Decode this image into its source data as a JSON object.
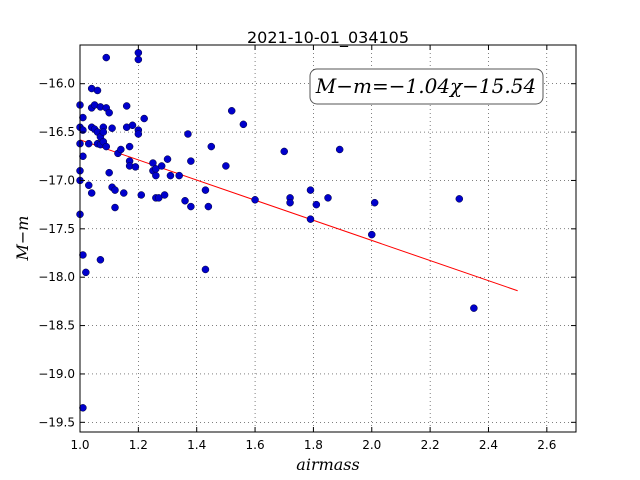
{
  "chart_data": {
    "type": "scatter",
    "title": "2021-10-01_034105",
    "xlabel": "airmass",
    "ylabel": "M−m",
    "xlim": [
      1.0,
      2.7
    ],
    "ylim": [
      -19.6,
      -15.6
    ],
    "x_ticks": [
      1.0,
      1.2,
      1.4,
      1.6,
      1.8,
      2.0,
      2.2,
      2.4,
      2.6
    ],
    "y_ticks": [
      -16.0,
      -16.5,
      -17.0,
      -17.5,
      -18.0,
      -18.5,
      -19.0,
      -19.5
    ],
    "x_tick_labels": [
      "1.0",
      "1.2",
      "1.4",
      "1.6",
      "1.8",
      "2.0",
      "2.2",
      "2.4",
      "2.6"
    ],
    "y_tick_labels": [
      "−16.0",
      "−16.5",
      "−17.0",
      "−17.5",
      "−18.0",
      "−18.5",
      "−19.0",
      "−19.5"
    ],
    "grid": true,
    "annotation": "M−m=−1.04χ−15.54",
    "fit": {
      "slope": -1.04,
      "intercept": -15.54,
      "x_range": [
        1.0,
        2.5
      ],
      "color": "#ff0000"
    },
    "points_color": "#0000cc",
    "points": [
      [
        1.0,
        -16.22
      ],
      [
        1.0,
        -16.45
      ],
      [
        1.0,
        -16.62
      ],
      [
        1.0,
        -16.9
      ],
      [
        1.0,
        -17.0
      ],
      [
        1.0,
        -17.35
      ],
      [
        1.01,
        -16.35
      ],
      [
        1.01,
        -16.48
      ],
      [
        1.01,
        -16.75
      ],
      [
        1.01,
        -17.77
      ],
      [
        1.02,
        -17.95
      ],
      [
        1.01,
        -19.35
      ],
      [
        1.03,
        -17.05
      ],
      [
        1.03,
        -16.62
      ],
      [
        1.04,
        -16.05
      ],
      [
        1.04,
        -16.25
      ],
      [
        1.04,
        -16.45
      ],
      [
        1.04,
        -17.13
      ],
      [
        1.05,
        -16.22
      ],
      [
        1.05,
        -16.47
      ],
      [
        1.06,
        -16.07
      ],
      [
        1.06,
        -16.5
      ],
      [
        1.06,
        -16.62
      ],
      [
        1.07,
        -16.24
      ],
      [
        1.07,
        -16.55
      ],
      [
        1.07,
        -16.63
      ],
      [
        1.07,
        -17.82
      ],
      [
        1.08,
        -16.45
      ],
      [
        1.08,
        -16.5
      ],
      [
        1.08,
        -16.6
      ],
      [
        1.09,
        -15.73
      ],
      [
        1.09,
        -16.25
      ],
      [
        1.09,
        -16.65
      ],
      [
        1.1,
        -16.3
      ],
      [
        1.1,
        -16.92
      ],
      [
        1.11,
        -16.46
      ],
      [
        1.11,
        -17.07
      ],
      [
        1.12,
        -17.1
      ],
      [
        1.12,
        -17.28
      ],
      [
        1.13,
        -16.72
      ],
      [
        1.14,
        -16.68
      ],
      [
        1.15,
        -17.13
      ],
      [
        1.16,
        -16.23
      ],
      [
        1.16,
        -16.45
      ],
      [
        1.17,
        -16.65
      ],
      [
        1.17,
        -16.8
      ],
      [
        1.17,
        -16.85
      ],
      [
        1.18,
        -16.43
      ],
      [
        1.19,
        -16.86
      ],
      [
        1.2,
        -15.68
      ],
      [
        1.2,
        -15.75
      ],
      [
        1.2,
        -16.48
      ],
      [
        1.2,
        -16.52
      ],
      [
        1.21,
        -17.15
      ],
      [
        1.22,
        -16.36
      ],
      [
        1.25,
        -16.82
      ],
      [
        1.25,
        -16.9
      ],
      [
        1.26,
        -16.88
      ],
      [
        1.26,
        -16.95
      ],
      [
        1.26,
        -17.18
      ],
      [
        1.27,
        -17.18
      ],
      [
        1.28,
        -16.85
      ],
      [
        1.29,
        -17.15
      ],
      [
        1.3,
        -16.78
      ],
      [
        1.31,
        -16.95
      ],
      [
        1.34,
        -16.95
      ],
      [
        1.36,
        -17.21
      ],
      [
        1.37,
        -16.52
      ],
      [
        1.38,
        -16.8
      ],
      [
        1.38,
        -17.27
      ],
      [
        1.43,
        -17.1
      ],
      [
        1.43,
        -17.92
      ],
      [
        1.44,
        -17.27
      ],
      [
        1.45,
        -16.65
      ],
      [
        1.5,
        -16.85
      ],
      [
        1.52,
        -16.28
      ],
      [
        1.56,
        -16.42
      ],
      [
        1.6,
        -17.2
      ],
      [
        1.7,
        -16.7
      ],
      [
        1.72,
        -17.18
      ],
      [
        1.72,
        -17.23
      ],
      [
        1.79,
        -17.4
      ],
      [
        1.79,
        -17.1
      ],
      [
        1.81,
        -17.25
      ],
      [
        1.85,
        -17.18
      ],
      [
        1.89,
        -16.68
      ],
      [
        2.0,
        -17.56
      ],
      [
        2.01,
        -17.23
      ],
      [
        2.3,
        -17.19
      ],
      [
        2.35,
        -18.32
      ]
    ]
  }
}
